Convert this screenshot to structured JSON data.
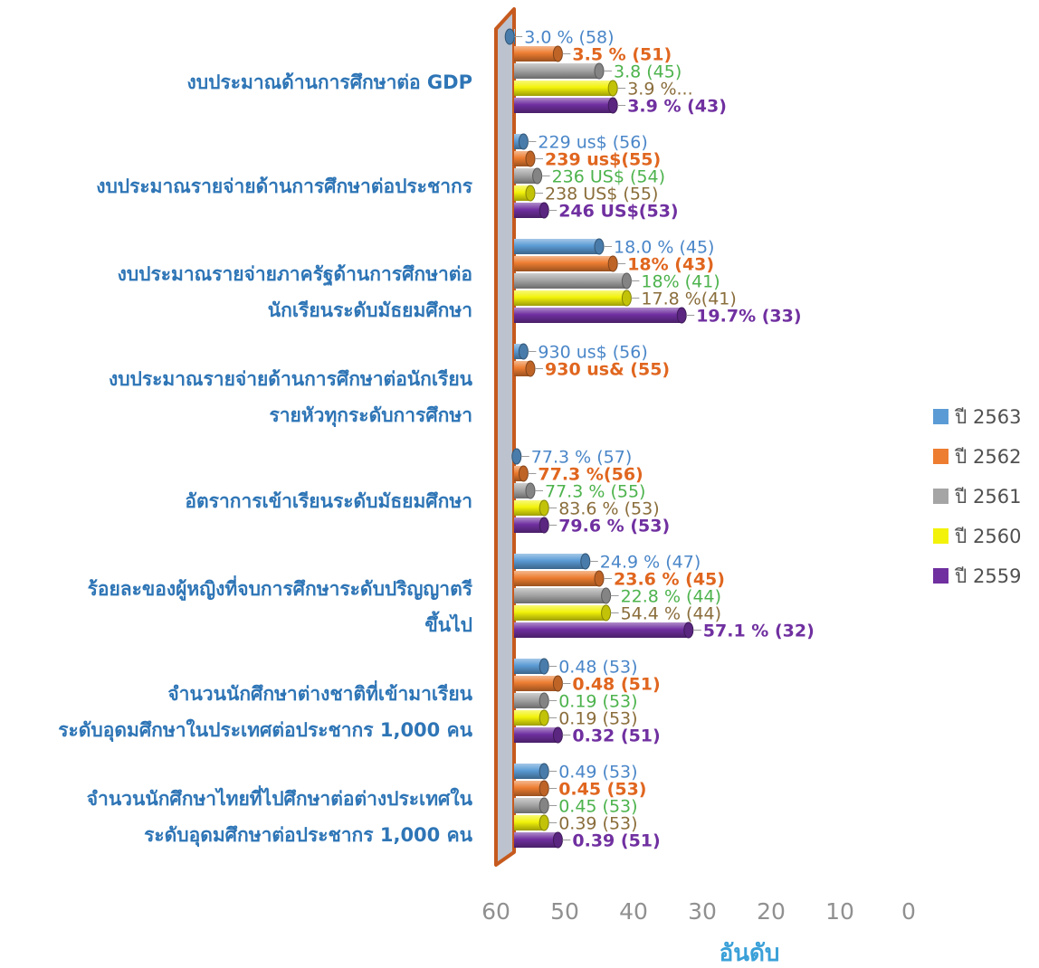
{
  "chart_data": {
    "type": "bar",
    "orientation": "horizontal",
    "three_d": true,
    "title": "",
    "xlabel": "อันดับ",
    "ylabel": "",
    "x_reversed": true,
    "xlim": [
      0,
      60
    ],
    "xticks": [
      "60",
      "50",
      "40",
      "30",
      "20",
      "10",
      "0"
    ],
    "grid": false,
    "legend_position": "right",
    "categories": [
      [
        "งบประมาณด้านการศึกษาต่อ GDP"
      ],
      [
        "งบประมาณรายจ่ายด้านการศึกษาต่อประชากร"
      ],
      [
        "งบประมาณรายจ่ายภาครัฐด้านการศึกษาต่อ",
        "นักเรียนระดับมัธยมศึกษา"
      ],
      [
        "งบประมาณรายจ่ายด้านการศึกษาต่อนักเรียน",
        "รายหัวทุกระดับการศึกษา"
      ],
      [
        "อัตราการเข้าเรียนระดับมัธยมศึกษา"
      ],
      [
        "ร้อยละของผู้หญิงที่จบการศึกษาระดับปริญญาตรี",
        "ขึ้นไป"
      ],
      [
        "จำนวนนักศึกษาต่างชาติที่เข้ามาเรียน",
        "ระดับอุดมศึกษาในประเทศต่อประชากร 1,000 คน"
      ],
      [
        "จำนวนนักศึกษาไทยที่ไปศึกษาต่อต่างประเทศใน",
        "ระดับอุดมศึกษาต่อประชากร 1,000 คน"
      ]
    ],
    "series": [
      {
        "name": "ปี 2563",
        "color": "#5b9bd5",
        "label_color": "#4a86c8",
        "label_bold": false,
        "values": [
          58,
          56,
          45,
          56,
          57,
          47,
          53,
          53
        ],
        "labels": [
          "3.0 % (58)",
          "229 us$ (56)",
          "18.0 % (45)",
          "930 us$ (56)",
          "77.3 % (57)",
          "24.9 % (47)",
          "0.48 (53)",
          "0.49 (53)"
        ]
      },
      {
        "name": "ปี 2562",
        "color": "#ed7d31",
        "label_color": "#e0661f",
        "label_bold": true,
        "values": [
          51,
          55,
          43,
          55,
          56,
          45,
          51,
          53
        ],
        "labels": [
          "3.5 % (51)",
          "239 us$(55)",
          "18% (43)",
          "930 us& (55)",
          "77.3 %(56)",
          "23.6 % (45)",
          "0.48 (51)",
          "0.45 (53)"
        ]
      },
      {
        "name": "ปี 2561",
        "color": "#a5a5a5",
        "label_color": "#4db34d",
        "label_bold": false,
        "values": [
          45,
          54,
          41,
          null,
          55,
          44,
          53,
          53
        ],
        "labels": [
          "3.8 (45)",
          "236 US$ (54)",
          "18% (41)",
          null,
          "77.3 % (55)",
          "22.8 % (44)",
          "0.19 (53)",
          "0.45 (53)"
        ]
      },
      {
        "name": "ปี 2560",
        "color": "#f2f20a",
        "label_color": "#8a6d3b",
        "label_bold": false,
        "values": [
          43,
          55,
          41,
          null,
          53,
          44,
          53,
          53
        ],
        "labels": [
          "3.9 %...",
          "238 US$ (55)",
          "17.8 %(41)",
          null,
          "83.6 % (53)",
          "54.4 % (44)",
          "0.19 (53)",
          "0.39 (53)"
        ]
      },
      {
        "name": "ปี 2559",
        "color": "#7030a0",
        "label_color": "#7030a0",
        "label_bold": true,
        "values": [
          43,
          53,
          33,
          null,
          53,
          32,
          51,
          51
        ],
        "labels": [
          "3.9 % (43)",
          "246 US$(53)",
          "19.7% (33)",
          null,
          "79.6 % (53)",
          "57.1 % (32)",
          "0.32 (51)",
          "0.39 (51)"
        ]
      }
    ]
  },
  "colors": {
    "category_text": "#2e75b6",
    "wall_fill": "#bcc3cf",
    "wall_edge": "#c65a1e",
    "tick_text": "#909090",
    "axis_title": "#3aa0d8"
  }
}
